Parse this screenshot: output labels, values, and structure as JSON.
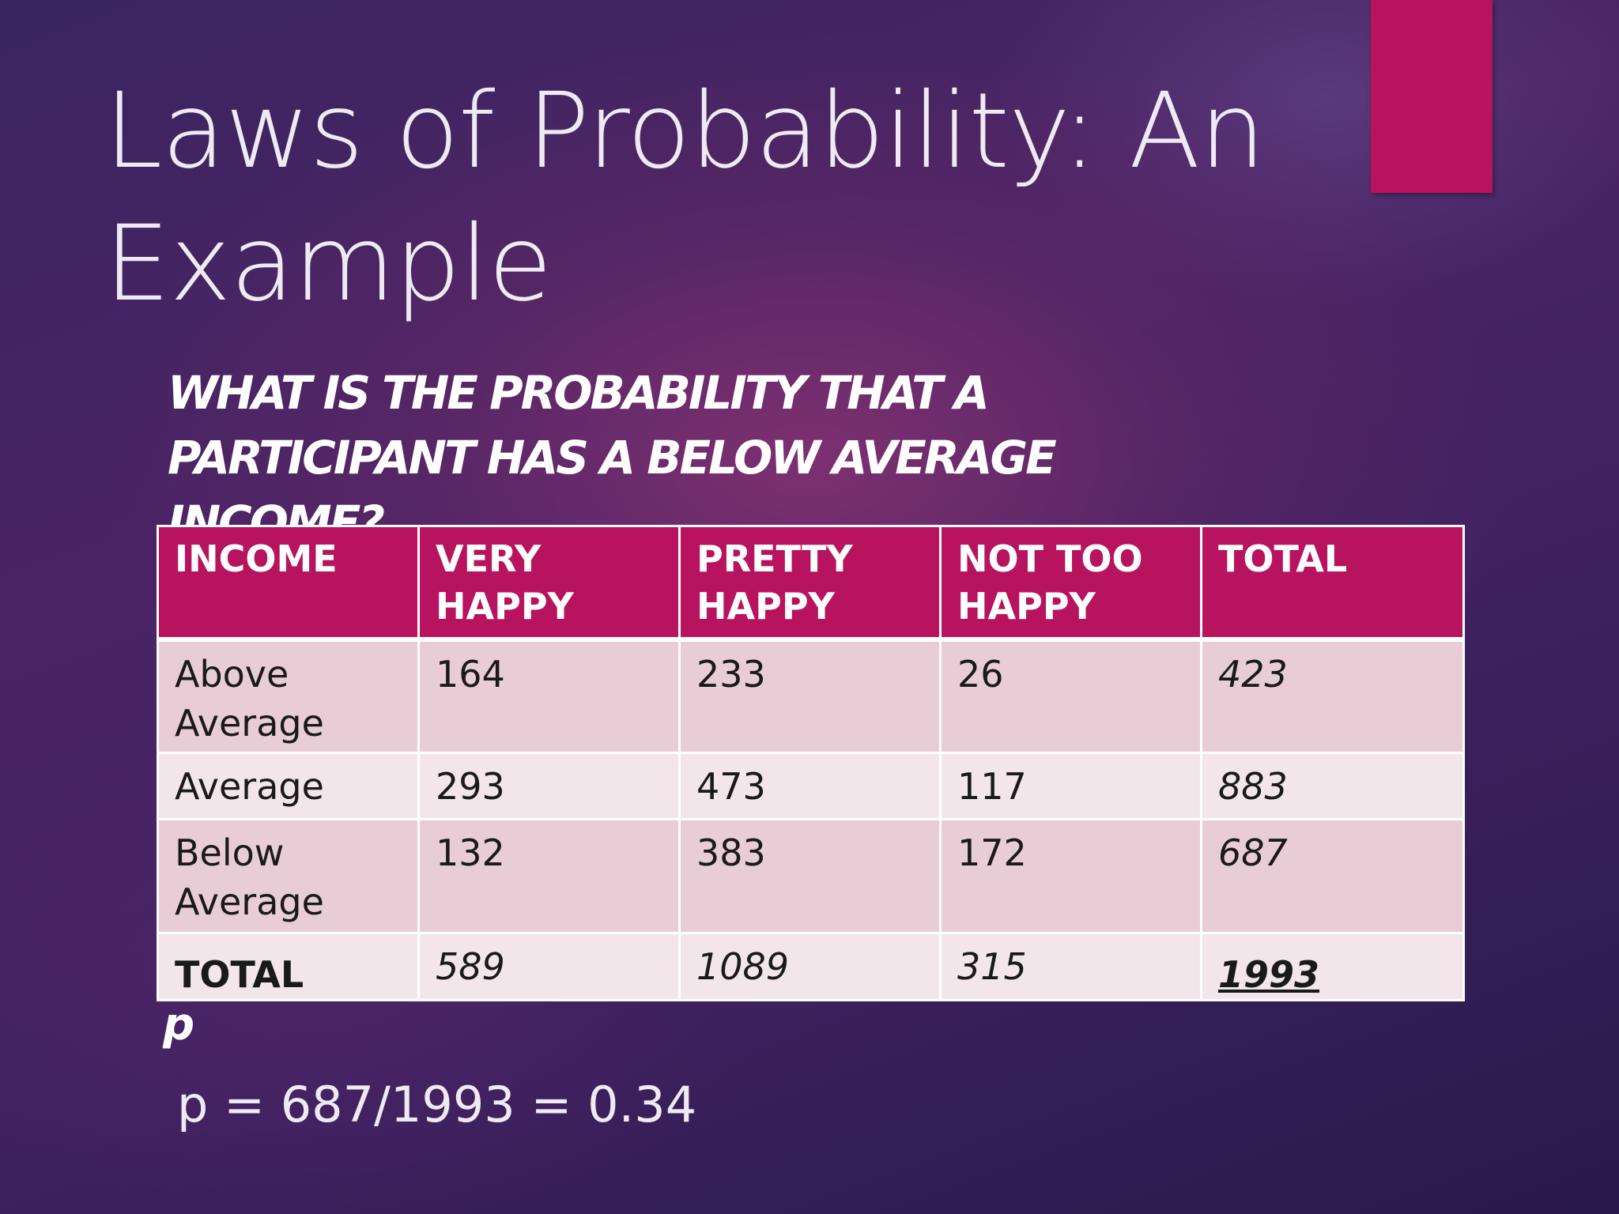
{
  "slide": {
    "title": "Laws of Probability: An Example",
    "question": "WHAT IS THE PROBABILITY THAT A PARTICIPANT HAS A BELOW AVERAGE INCOME?",
    "accent_color": "#b8135f"
  },
  "table": {
    "headers": [
      "INCOME",
      "VERY HAPPY",
      "PRETTY HAPPY",
      "NOT TOO HAPPY",
      "TOTAL"
    ],
    "rows": [
      {
        "label": "Above Average",
        "values": [
          "164",
          "233",
          "26"
        ],
        "total": "423"
      },
      {
        "label": "Average",
        "values": [
          "293",
          "473",
          "117"
        ],
        "total": "883"
      },
      {
        "label": "Below Average",
        "values": [
          "132",
          "383",
          "172"
        ],
        "total": "687"
      }
    ],
    "totals_row": {
      "label": "TOTAL",
      "values": [
        "589",
        "1089",
        "315"
      ],
      "total": "1993"
    }
  },
  "answer": {
    "symbol": "p",
    "formula": "p = 687/1993 = 0.34"
  }
}
